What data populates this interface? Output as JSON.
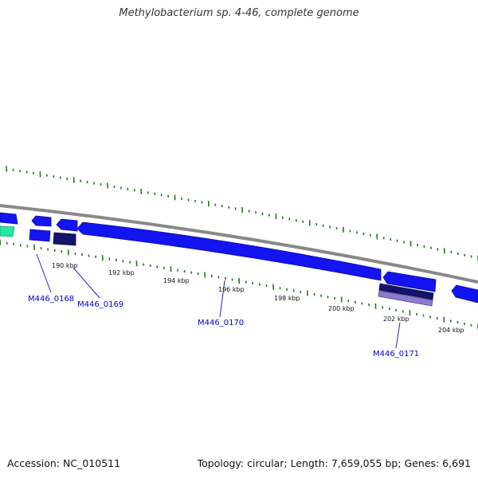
{
  "title": "Methylobacterium sp. 4-46, complete genome",
  "footer": {
    "accession": "Accession: NC_010511",
    "summary": "Topology: circular; Length: 7,659,055 bp; Genes: 6,691"
  },
  "colors": {
    "backbone": "#888888",
    "forward_tick": "#1a7a1a",
    "gene_blue": "#1414f0",
    "gene_dark": "#14146e",
    "gene_lavender": "#8a7ad0",
    "gene_green": "#22e8a0",
    "label_blue": "#0000cc"
  },
  "scale": {
    "tick_labels": [
      "190 kbp",
      "192 kbp",
      "194 kbp",
      "196 kbp",
      "198 kbp",
      "200 kbp",
      "202 kbp",
      "204 kbp"
    ]
  },
  "genes": [
    {
      "label": "M446_0168"
    },
    {
      "label": "M446_0169"
    },
    {
      "label": "M446_0170"
    },
    {
      "label": "M446_0171"
    }
  ]
}
